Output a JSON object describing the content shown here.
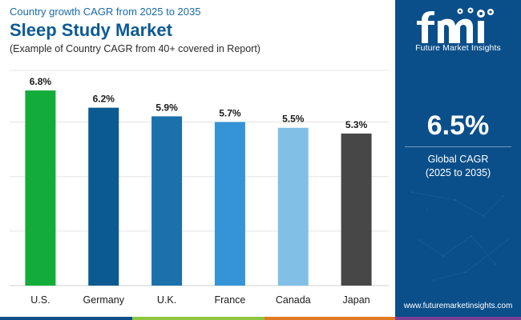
{
  "header": {
    "supertitle": "Country growth CAGR from 2025 to 2035",
    "title": "Sleep Study Market",
    "subtitle": "(Example of Country CAGR from 40+ covered in Report)"
  },
  "chart_data": {
    "type": "bar",
    "categories": [
      "U.S.",
      "Germany",
      "U.K.",
      "France",
      "Canada",
      "Japan"
    ],
    "values": [
      6.8,
      6.2,
      5.9,
      5.7,
      5.5,
      5.3
    ],
    "value_labels": [
      "6.8%",
      "6.2%",
      "5.9%",
      "5.7%",
      "5.5%",
      "5.3%"
    ],
    "colors": [
      "#12ac3a",
      "#0b5a91",
      "#1c70ac",
      "#3494d6",
      "#82bfe6",
      "#474747"
    ],
    "ylim": [
      0,
      7.5
    ],
    "grid": true,
    "gridline_values": [
      1.9,
      3.8,
      5.7,
      7.5
    ]
  },
  "sidebar": {
    "logo_text": "Future Market Insights",
    "logo_letters": "fmi",
    "cagr_value": "6.5%",
    "cagr_label": "Global CAGR",
    "cagr_period": "(2025 to 2035)",
    "website": "www.futuremarketinsights.com",
    "background_color": "#0b4f8a"
  },
  "bottom_strip_colors": [
    "#0b4f8a",
    "#8dc63f",
    "#e07b24",
    "#7b3f98"
  ]
}
